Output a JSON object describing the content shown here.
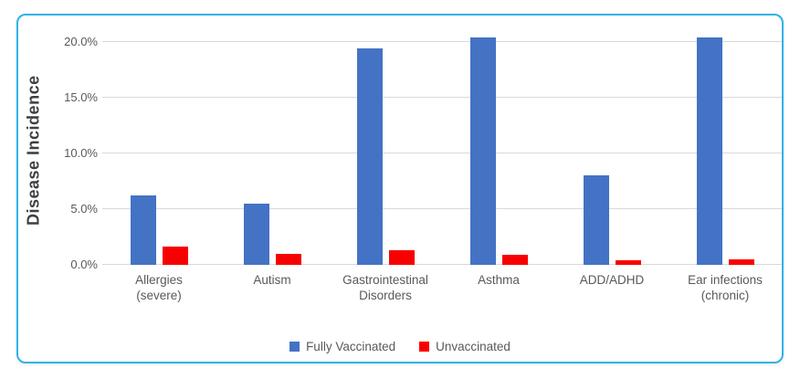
{
  "card": {
    "border_color": "#31b2e5",
    "background": "#ffffff"
  },
  "chart_data": {
    "type": "bar",
    "title": "",
    "xlabel": "",
    "ylabel": "Disease Incidence",
    "ylim": [
      0,
      21
    ],
    "grid": true,
    "legend_position": "bottom",
    "yticks": [
      {
        "value": 0,
        "label": "0.0%"
      },
      {
        "value": 5,
        "label": "5.0%"
      },
      {
        "value": 10,
        "label": "10.0%"
      },
      {
        "value": 15,
        "label": "15.0%"
      },
      {
        "value": 20,
        "label": "20.0%"
      }
    ],
    "categories": [
      "Allergies (severe)",
      "Autism",
      "Gastrointestinal Disorders",
      "Asthma",
      "ADD/ADHD",
      "Ear infections (chronic)"
    ],
    "category_lines": [
      [
        "Allergies",
        "(severe)"
      ],
      [
        "Autism"
      ],
      [
        "Gastrointestinal",
        "Disorders"
      ],
      [
        "Asthma"
      ],
      [
        "ADD/ADHD"
      ],
      [
        "Ear infections",
        "(chronic)"
      ]
    ],
    "series": [
      {
        "name": "Fully Vaccinated",
        "color": "#4472c4",
        "values": [
          6.2,
          5.5,
          19.4,
          20.4,
          8.0,
          20.4
        ]
      },
      {
        "name": "Unvaccinated",
        "color": "#f80000",
        "values": [
          1.6,
          1.0,
          1.3,
          0.9,
          0.4,
          0.5
        ]
      }
    ],
    "colors": {
      "gridline": "#d9d9d9",
      "tick_text": "#595959",
      "axis_title_text": "#3f3f3f"
    }
  }
}
